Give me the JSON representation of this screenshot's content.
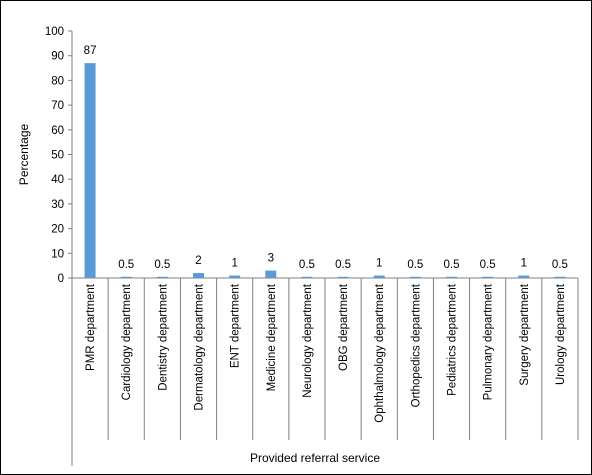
{
  "chart_data": {
    "type": "bar",
    "title": "",
    "xlabel": "Provided referral service",
    "ylabel": "Percentage",
    "ylim": [
      0,
      100
    ],
    "yticks": [
      "0",
      "10",
      "20",
      "30",
      "40",
      "50",
      "60",
      "70",
      "80",
      "90",
      "100"
    ],
    "grid": false,
    "legend": "none",
    "bar_color": "#5b9bd5",
    "categories": [
      "PMR department",
      "Cardiology department",
      "Dentistry department",
      "Dermatology department",
      "ENT department",
      "Medicine department",
      "Neurology department",
      "OBG department",
      "Ophthalmology department",
      "Orthopedics department",
      "Pediatrics department",
      "Pulmonary department",
      "Surgery department",
      "Urology department"
    ],
    "values": [
      87,
      0.5,
      0.5,
      2,
      1,
      3,
      0.5,
      0.5,
      1,
      0.5,
      0.5,
      0.5,
      1,
      0.5
    ],
    "data_labels": [
      "87",
      "0.5",
      "0.5",
      "2",
      "1",
      "3",
      "0.5",
      "0.5",
      "1",
      "0.5",
      "0.5",
      "0.5",
      "1",
      "0.5"
    ]
  }
}
